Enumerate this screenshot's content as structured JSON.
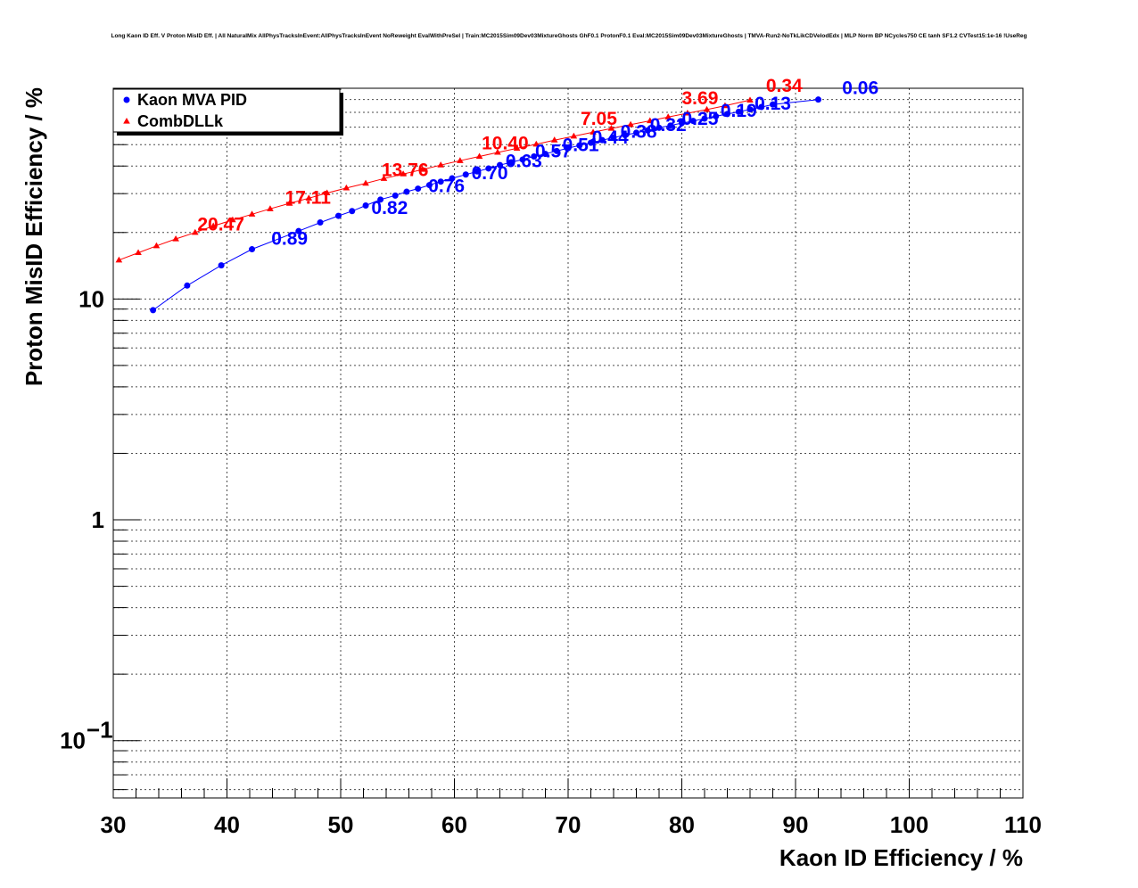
{
  "chart_data": {
    "type": "line",
    "title": "Long Kaon ID Eff. V Proton MisID Eff. | All NaturalMix AllPhysTracksInEvent:AllPhysTracksInEvent NoReweight EvalWithPreSel | Train:MC2015Sim09Dev03MixtureGhosts GhF0.1 ProtonF0.1 Eval:MC2015Sim09Dev03MixtureGhosts | TMVA-Run2-NoTkLikCDVelodEdx | MLP Norm BP NCycles750 CE tanh SF1.2 CVTest15:1e-16 !UseReg",
    "xlabel": "Kaon ID Efficiency / %",
    "ylabel": "Proton MisID Efficiency / %",
    "xlim": [
      30,
      110
    ],
    "ylim": [
      0.055,
      90
    ],
    "ylog": true,
    "grid": true,
    "legend_position": "top-left",
    "x_ticks": [
      "30",
      "40",
      "50",
      "60",
      "70",
      "80",
      "90",
      "100",
      "110"
    ],
    "y_ticks": [
      {
        "value": 0.1,
        "base": "10",
        "exp": "−1"
      },
      {
        "value": 1,
        "label": "1"
      },
      {
        "value": 10,
        "label": "10"
      }
    ],
    "series": [
      {
        "name": "Kaon MVA PID",
        "color": "#0000ff",
        "marker": "circle",
        "x": [
          33.5,
          36.5,
          39.5,
          42.2,
          46.3,
          48.2,
          49.8,
          51.0,
          52.2,
          53.5,
          54.8,
          55.8,
          56.8,
          57.8,
          58.8,
          59.8,
          61.0,
          62.0,
          63.0,
          64.0,
          65.0,
          66.0,
          67.0,
          68.0,
          69.0,
          70.0,
          71.0,
          72.0,
          73.0,
          74.0,
          75.0,
          76.0,
          77.0,
          78.0,
          79.0,
          80.0,
          81.0,
          82.0,
          83.0,
          84.0,
          85.0,
          86.0,
          87.0,
          88.0,
          92.0
        ],
        "y": [
          8.9,
          11.5,
          14.2,
          16.8,
          20.3,
          22.2,
          23.8,
          25.0,
          26.5,
          28.2,
          29.4,
          30.6,
          31.6,
          32.8,
          34.0,
          35.2,
          36.6,
          37.8,
          39.0,
          40.4,
          41.6,
          42.8,
          44.2,
          45.4,
          46.8,
          48.2,
          49.6,
          51.0,
          52.4,
          53.8,
          55.2,
          56.6,
          58.0,
          59.6,
          61.0,
          62.6,
          64.0,
          65.6,
          67.2,
          68.8,
          70.4,
          72.2,
          74.0,
          76.0,
          80.0
        ],
        "annotations": [
          {
            "text": "0.89",
            "x": 43.9,
            "y": 17.6
          },
          {
            "text": "0.82",
            "x": 52.7,
            "y": 24.3
          },
          {
            "text": "0.76",
            "x": 57.7,
            "y": 30.5
          },
          {
            "text": "0.70",
            "x": 61.5,
            "y": 34.9
          },
          {
            "text": "0.63",
            "x": 64.5,
            "y": 39.6
          },
          {
            "text": "0.57",
            "x": 67.1,
            "y": 43.7
          },
          {
            "text": "0.51",
            "x": 69.5,
            "y": 46.8
          },
          {
            "text": "0.44",
            "x": 72.1,
            "y": 50.5
          },
          {
            "text": "0.38",
            "x": 74.6,
            "y": 53.8
          },
          {
            "text": "0.32",
            "x": 77.2,
            "y": 57.6
          },
          {
            "text": "0.25",
            "x": 80.0,
            "y": 61.6
          },
          {
            "text": "0.19",
            "x": 83.4,
            "y": 66.8
          },
          {
            "text": "0.13",
            "x": 86.4,
            "y": 72.1
          },
          {
            "text": "0.06",
            "x": 94.1,
            "y": 84.8
          }
        ]
      },
      {
        "name": "CombDLLk",
        "color": "#ff0000",
        "marker": "triangle",
        "x": [
          30.5,
          32.2,
          33.8,
          35.5,
          37.2,
          38.8,
          40.5,
          42.2,
          43.8,
          45.5,
          47.2,
          48.8,
          50.5,
          52.2,
          53.8,
          55.5,
          57.2,
          58.8,
          60.5,
          62.2,
          63.8,
          65.5,
          67.2,
          68.8,
          70.5,
          72.2,
          73.8,
          75.5,
          77.2,
          78.8,
          80.5,
          82.2,
          83.8,
          86.0
        ],
        "y": [
          15.0,
          16.2,
          17.4,
          18.7,
          20.0,
          21.4,
          22.8,
          24.2,
          25.6,
          27.1,
          28.6,
          30.2,
          31.8,
          33.4,
          35.1,
          36.8,
          38.6,
          40.4,
          42.3,
          44.2,
          46.1,
          48.1,
          50.2,
          52.4,
          54.6,
          56.9,
          59.2,
          61.6,
          64.1,
          66.7,
          69.4,
          72.1,
          75.0,
          79.5
        ],
        "annotations": [
          {
            "text": "20.47",
            "x": 37.4,
            "y": 20.4
          },
          {
            "text": "17.11",
            "x": 45.1,
            "y": 27.0
          },
          {
            "text": "13.76",
            "x": 53.6,
            "y": 36.1
          },
          {
            "text": "10.40",
            "x": 62.4,
            "y": 47.6
          },
          {
            "text": "7.05",
            "x": 71.1,
            "y": 61.6
          },
          {
            "text": "3.69",
            "x": 80.0,
            "y": 76.0
          },
          {
            "text": "0.34",
            "x": 87.4,
            "y": 86.7
          }
        ]
      }
    ]
  }
}
